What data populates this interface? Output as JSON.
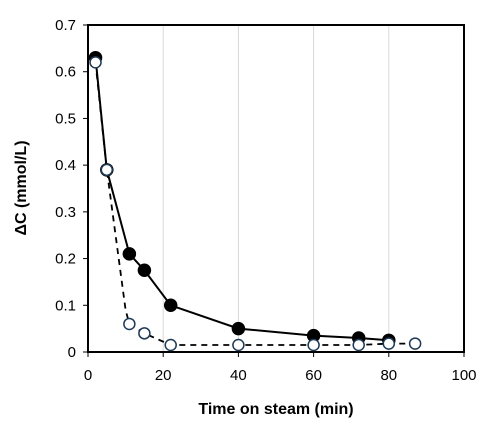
{
  "chart_data": {
    "type": "scatter",
    "title": "",
    "xlabel": "Time on steam (min)",
    "ylabel": "ΔC  (mmol/L)",
    "xlim": [
      0,
      100
    ],
    "ylim": [
      0,
      0.7
    ],
    "x_ticks": [
      "0",
      "20",
      "40",
      "60",
      "80",
      "100"
    ],
    "y_ticks": [
      "0",
      "0.1",
      "0.2",
      "0.3",
      "0.4",
      "0.5",
      "0.6",
      "0.7"
    ],
    "x_tick_values": [
      0,
      20,
      40,
      60,
      80,
      100
    ],
    "y_tick_values": [
      0,
      0.1,
      0.2,
      0.3,
      0.4,
      0.5,
      0.6,
      0.7
    ],
    "grid": "vertical",
    "legend": "none",
    "series": [
      {
        "marker": "filled-circle",
        "line": "solid",
        "color": "#000000",
        "points": [
          {
            "x": 2,
            "y": 0.63
          },
          {
            "x": 5,
            "y": 0.39
          },
          {
            "x": 11,
            "y": 0.21
          },
          {
            "x": 15,
            "y": 0.175
          },
          {
            "x": 22,
            "y": 0.1
          },
          {
            "x": 40,
            "y": 0.05
          },
          {
            "x": 60,
            "y": 0.035
          },
          {
            "x": 72,
            "y": 0.03
          },
          {
            "x": 80,
            "y": 0.025
          }
        ]
      },
      {
        "marker": "open-circle",
        "line": "dashed",
        "color": "#1f3a56",
        "points": [
          {
            "x": 2,
            "y": 0.62
          },
          {
            "x": 5,
            "y": 0.39
          },
          {
            "x": 11,
            "y": 0.06
          },
          {
            "x": 15,
            "y": 0.04
          },
          {
            "x": 22,
            "y": 0.015
          },
          {
            "x": 40,
            "y": 0.015
          },
          {
            "x": 60,
            "y": 0.015
          },
          {
            "x": 72,
            "y": 0.015
          },
          {
            "x": 80,
            "y": 0.018
          },
          {
            "x": 87,
            "y": 0.018
          }
        ],
        "line_points": [
          {
            "x": 2,
            "y": 0.62
          },
          {
            "x": 5,
            "y": 0.39
          },
          {
            "x": 10,
            "y": 0.09
          },
          {
            "x": 11,
            "y": 0.06
          },
          {
            "x": 15,
            "y": 0.04
          },
          {
            "x": 22,
            "y": 0.015
          },
          {
            "x": 40,
            "y": 0.015
          },
          {
            "x": 60,
            "y": 0.015
          },
          {
            "x": 72,
            "y": 0.015
          },
          {
            "x": 80,
            "y": 0.018
          },
          {
            "x": 87,
            "y": 0.018
          }
        ]
      }
    ]
  }
}
